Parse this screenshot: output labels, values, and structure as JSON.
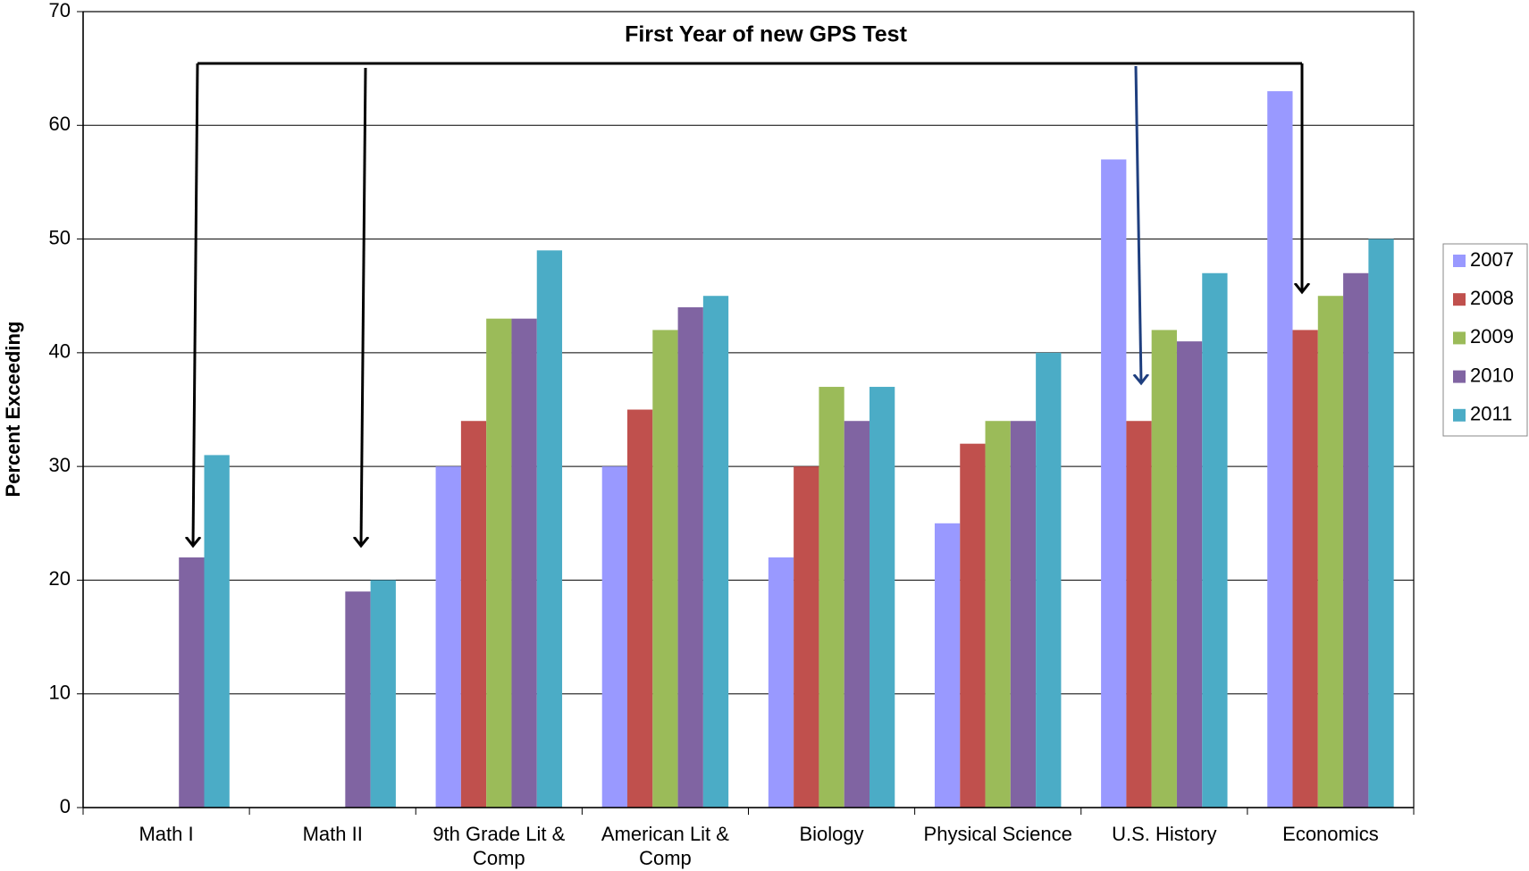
{
  "chart_data": {
    "type": "bar",
    "title": "First Year of new GPS Test",
    "y_label": "Percent Exceeding",
    "categories": [
      "Math I",
      "Math II",
      "9th Grade Lit & Comp",
      "American Lit & Comp",
      "Biology",
      "Physical Science",
      "U.S. History",
      "Economics"
    ],
    "series": [
      {
        "name": "2007",
        "color": "#9999ff",
        "values": [
          null,
          null,
          30,
          30,
          22,
          25,
          57,
          63
        ]
      },
      {
        "name": "2008",
        "color": "#c0504d",
        "values": [
          null,
          null,
          34,
          35,
          30,
          32,
          34,
          42
        ]
      },
      {
        "name": "2009",
        "color": "#9bbb59",
        "values": [
          null,
          null,
          43,
          42,
          37,
          34,
          42,
          45
        ]
      },
      {
        "name": "2010",
        "color": "#8064a2",
        "values": [
          22,
          19,
          43,
          44,
          34,
          34,
          41,
          47
        ]
      },
      {
        "name": "2011",
        "color": "#4bacc6",
        "values": [
          31,
          20,
          49,
          45,
          37,
          40,
          47,
          50
        ]
      }
    ],
    "ylim": [
      0,
      70
    ],
    "yticks": [
      0,
      10,
      20,
      30,
      40,
      50,
      60,
      70
    ],
    "grid": true,
    "legend": "right"
  }
}
